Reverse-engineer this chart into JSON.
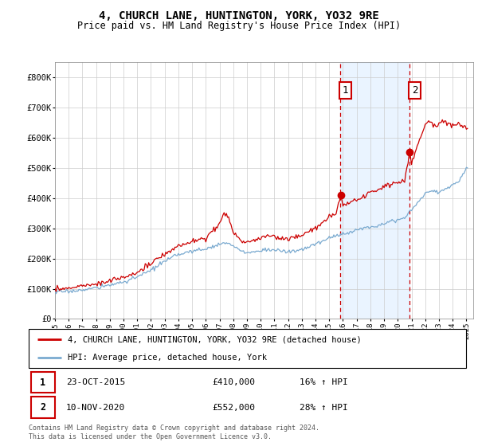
{
  "title": "4, CHURCH LANE, HUNTINGTON, YORK, YO32 9RE",
  "subtitle": "Price paid vs. HM Land Registry's House Price Index (HPI)",
  "ylim": [
    0,
    850000
  ],
  "yticks": [
    0,
    100000,
    200000,
    300000,
    400000,
    500000,
    600000,
    700000,
    800000
  ],
  "ytick_labels": [
    "£0",
    "£100K",
    "£200K",
    "£300K",
    "£400K",
    "£500K",
    "£600K",
    "£700K",
    "£800K"
  ],
  "xticks": [
    1995,
    1996,
    1997,
    1998,
    1999,
    2000,
    2001,
    2002,
    2003,
    2004,
    2005,
    2006,
    2007,
    2008,
    2009,
    2010,
    2011,
    2012,
    2013,
    2014,
    2015,
    2016,
    2017,
    2018,
    2019,
    2020,
    2021,
    2022,
    2023,
    2024,
    2025
  ],
  "hpi_color": "#7aaad0",
  "price_color": "#cc0000",
  "vline_color": "#cc0000",
  "shade_color": "#ddeeff",
  "point1_x": 2015.81,
  "point1_y": 410000,
  "point1_label": "1",
  "point2_x": 2020.87,
  "point2_y": 552000,
  "point2_label": "2",
  "legend_label_price": "4, CHURCH LANE, HUNTINGTON, YORK, YO32 9RE (detached house)",
  "legend_label_hpi": "HPI: Average price, detached house, York",
  "table_row1": [
    "1",
    "23-OCT-2015",
    "£410,000",
    "16% ↑ HPI"
  ],
  "table_row2": [
    "2",
    "10-NOV-2020",
    "£552,000",
    "28% ↑ HPI"
  ],
  "footer": "Contains HM Land Registry data © Crown copyright and database right 2024.\nThis data is licensed under the Open Government Licence v3.0."
}
